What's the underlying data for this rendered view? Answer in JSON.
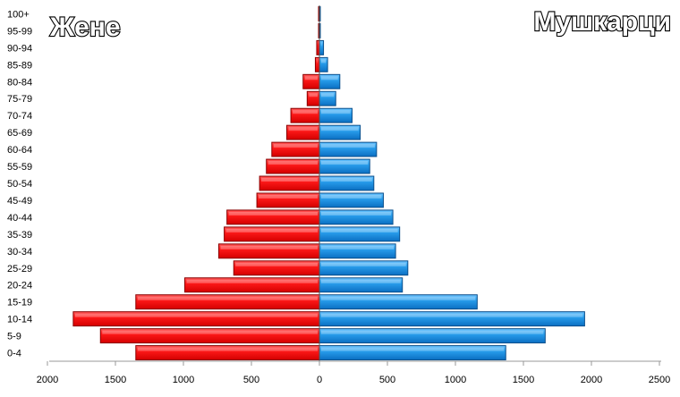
{
  "chart_data": {
    "type": "bar",
    "orientation": "horizontal-pyramid",
    "categories": [
      "0-4",
      "5-9",
      "10-14",
      "15-19",
      "20-24",
      "25-29",
      "30-34",
      "35-39",
      "40-44",
      "45-49",
      "50-54",
      "55-59",
      "60-64",
      "65-69",
      "70-74",
      "75-79",
      "80-84",
      "85-89",
      "90-94",
      "95-99",
      "100+"
    ],
    "series": [
      {
        "name": "Жене",
        "side": "left",
        "color": "#ff0000",
        "values": [
          1350,
          1610,
          1810,
          1350,
          990,
          630,
          740,
          700,
          680,
          460,
          440,
          390,
          350,
          240,
          210,
          90,
          120,
          30,
          20,
          5,
          5
        ]
      },
      {
        "name": "Мушкарци",
        "side": "right",
        "color": "#1f9be8",
        "values": [
          1370,
          1660,
          1950,
          1160,
          610,
          650,
          560,
          590,
          540,
          470,
          400,
          370,
          420,
          300,
          240,
          120,
          150,
          60,
          30,
          5,
          5
        ]
      }
    ],
    "x_ticks": [
      "2000",
      "1500",
      "1000",
      "500",
      "0",
      "500",
      "1000",
      "1500",
      "2000",
      "2500"
    ],
    "xlim": [
      -2000,
      2500
    ]
  },
  "colors": {
    "female": "#ff0000",
    "male": "#1f9be8"
  }
}
